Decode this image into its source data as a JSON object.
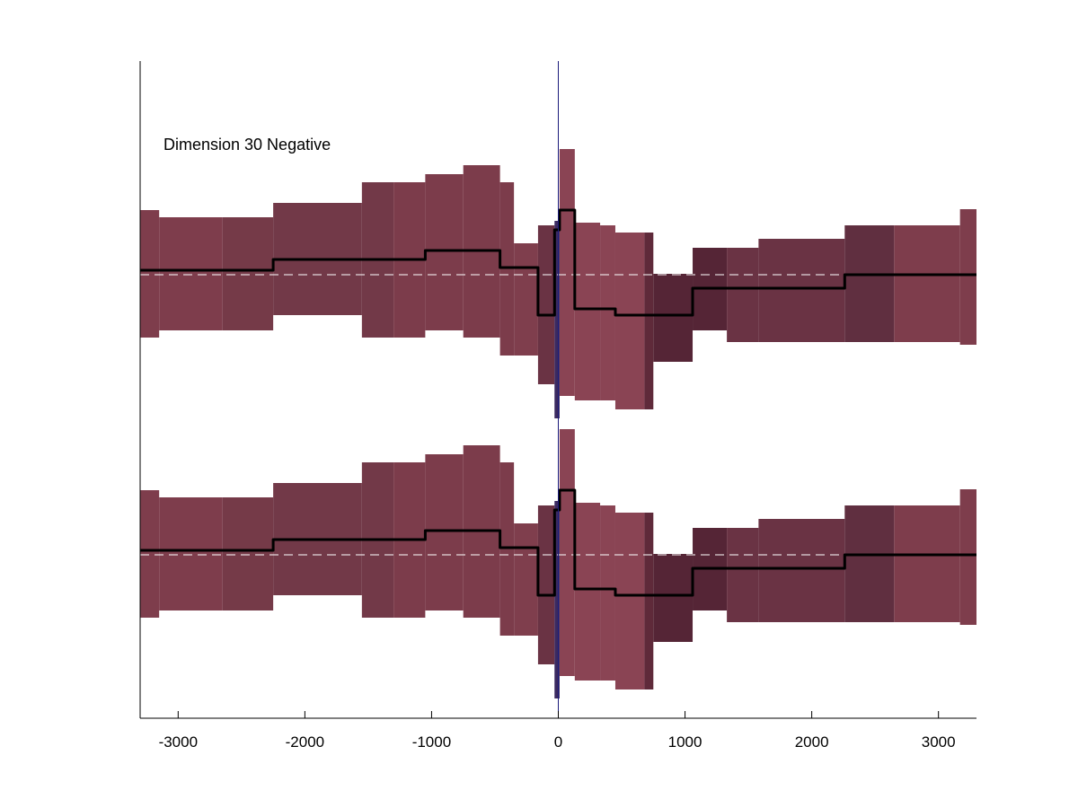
{
  "chart_data": {
    "type": "area",
    "title": "",
    "annotation": "Dimension 30 Negative",
    "xlabel": "",
    "ylabel": "",
    "xlim": [
      -3300,
      3300
    ],
    "x_ticks": [
      -3000,
      -2000,
      -1000,
      0,
      1000,
      2000,
      3000
    ],
    "x_tick_labels": [
      "-3000",
      "-2000",
      "-1000",
      "0",
      "1000",
      "2000",
      "3000"
    ],
    "grid": false,
    "legend": "none",
    "panels": [
      {
        "name": "",
        "reference_line": "dashed",
        "bins": [
          {
            "x0": -3300,
            "x1": -3150,
            "lower": -0.7,
            "upper": 0.72,
            "mean": 0.05,
            "color": "#7e3d4c"
          },
          {
            "x0": -3150,
            "x1": -2650,
            "lower": -0.62,
            "upper": 0.64,
            "mean": 0.05,
            "color": "#7e3d4c"
          },
          {
            "x0": -2650,
            "x1": -2250,
            "lower": -0.62,
            "upper": 0.64,
            "mean": 0.05,
            "color": "#753a48"
          },
          {
            "x0": -2250,
            "x1": -1550,
            "lower": -0.45,
            "upper": 0.8,
            "mean": 0.17,
            "color": "#723948"
          },
          {
            "x0": -1550,
            "x1": -1300,
            "lower": -0.7,
            "upper": 1.03,
            "mean": 0.17,
            "color": "#723948"
          },
          {
            "x0": -1300,
            "x1": -1050,
            "lower": -0.7,
            "upper": 1.03,
            "mean": 0.17,
            "color": "#7c3c4b"
          },
          {
            "x0": -1050,
            "x1": -750,
            "lower": -0.62,
            "upper": 1.12,
            "mean": 0.27,
            "color": "#7c3c4b"
          },
          {
            "x0": -750,
            "x1": -460,
            "lower": -0.7,
            "upper": 1.22,
            "mean": 0.27,
            "color": "#7c3c4b"
          },
          {
            "x0": -460,
            "x1": -350,
            "lower": -0.9,
            "upper": 1.03,
            "mean": 0.08,
            "color": "#7c3c4b"
          },
          {
            "x0": -350,
            "x1": -160,
            "lower": -0.9,
            "upper": 0.35,
            "mean": 0.08,
            "color": "#7f3e4d"
          },
          {
            "x0": -160,
            "x1": -30,
            "lower": -1.22,
            "upper": 0.55,
            "mean": -0.45,
            "color": "#6a3344"
          },
          {
            "x0": -30,
            "x1": 10,
            "lower": -1.6,
            "upper": 0.6,
            "mean": 0.5,
            "color": "#3b2a60"
          },
          {
            "x0": 10,
            "x1": 130,
            "lower": -1.35,
            "upper": 1.4,
            "mean": 0.72,
            "color": "#8a4454"
          },
          {
            "x0": 130,
            "x1": 330,
            "lower": -1.4,
            "upper": 0.58,
            "mean": -0.38,
            "color": "#8a4454"
          },
          {
            "x0": 330,
            "x1": 450,
            "lower": -1.4,
            "upper": 0.55,
            "mean": -0.38,
            "color": "#8a4454"
          },
          {
            "x0": 450,
            "x1": 680,
            "lower": -1.5,
            "upper": 0.47,
            "mean": -0.45,
            "color": "#8a4454"
          },
          {
            "x0": 680,
            "x1": 750,
            "lower": -1.5,
            "upper": 0.47,
            "mean": -0.45,
            "color": "#5f2a3a"
          },
          {
            "x0": 750,
            "x1": 1060,
            "lower": -0.97,
            "upper": 0.01,
            "mean": -0.45,
            "color": "#552536"
          },
          {
            "x0": 1060,
            "x1": 1330,
            "lower": -0.62,
            "upper": 0.3,
            "mean": -0.15,
            "color": "#552536"
          },
          {
            "x0": 1330,
            "x1": 1580,
            "lower": -0.75,
            "upper": 0.3,
            "mean": -0.15,
            "color": "#6a3344"
          },
          {
            "x0": 1580,
            "x1": 2260,
            "lower": -0.75,
            "upper": 0.4,
            "mean": -0.15,
            "color": "#6a3344"
          },
          {
            "x0": 2260,
            "x1": 2650,
            "lower": -0.75,
            "upper": 0.55,
            "mean": 0.0,
            "color": "#602f40"
          },
          {
            "x0": 2650,
            "x1": 3170,
            "lower": -0.75,
            "upper": 0.55,
            "mean": 0.0,
            "color": "#7e3d4c"
          },
          {
            "x0": 3170,
            "x1": 3300,
            "lower": -0.78,
            "upper": 0.73,
            "mean": 0.0,
            "color": "#7e3d4c"
          }
        ]
      },
      {
        "name": "",
        "reference_line": "dashed",
        "bins": [
          {
            "x0": -3300,
            "x1": -3150,
            "lower": -0.7,
            "upper": 0.72,
            "mean": 0.05,
            "color": "#7e3d4c"
          },
          {
            "x0": -3150,
            "x1": -2650,
            "lower": -0.62,
            "upper": 0.64,
            "mean": 0.05,
            "color": "#7e3d4c"
          },
          {
            "x0": -2650,
            "x1": -2250,
            "lower": -0.62,
            "upper": 0.64,
            "mean": 0.05,
            "color": "#753a48"
          },
          {
            "x0": -2250,
            "x1": -1550,
            "lower": -0.45,
            "upper": 0.8,
            "mean": 0.17,
            "color": "#723948"
          },
          {
            "x0": -1550,
            "x1": -1300,
            "lower": -0.7,
            "upper": 1.03,
            "mean": 0.17,
            "color": "#723948"
          },
          {
            "x0": -1300,
            "x1": -1050,
            "lower": -0.7,
            "upper": 1.03,
            "mean": 0.17,
            "color": "#7c3c4b"
          },
          {
            "x0": -1050,
            "x1": -750,
            "lower": -0.62,
            "upper": 1.12,
            "mean": 0.27,
            "color": "#7c3c4b"
          },
          {
            "x0": -750,
            "x1": -460,
            "lower": -0.7,
            "upper": 1.22,
            "mean": 0.27,
            "color": "#7c3c4b"
          },
          {
            "x0": -460,
            "x1": -350,
            "lower": -0.9,
            "upper": 1.03,
            "mean": 0.08,
            "color": "#7c3c4b"
          },
          {
            "x0": -350,
            "x1": -160,
            "lower": -0.9,
            "upper": 0.35,
            "mean": 0.08,
            "color": "#7f3e4d"
          },
          {
            "x0": -160,
            "x1": -30,
            "lower": -1.22,
            "upper": 0.55,
            "mean": -0.45,
            "color": "#6a3344"
          },
          {
            "x0": -30,
            "x1": 10,
            "lower": -1.6,
            "upper": 0.6,
            "mean": 0.5,
            "color": "#3b2a60"
          },
          {
            "x0": 10,
            "x1": 130,
            "lower": -1.35,
            "upper": 1.4,
            "mean": 0.72,
            "color": "#8a4454"
          },
          {
            "x0": 130,
            "x1": 330,
            "lower": -1.4,
            "upper": 0.58,
            "mean": -0.38,
            "color": "#8a4454"
          },
          {
            "x0": 330,
            "x1": 450,
            "lower": -1.4,
            "upper": 0.55,
            "mean": -0.38,
            "color": "#8a4454"
          },
          {
            "x0": 450,
            "x1": 680,
            "lower": -1.5,
            "upper": 0.47,
            "mean": -0.45,
            "color": "#8a4454"
          },
          {
            "x0": 680,
            "x1": 750,
            "lower": -1.5,
            "upper": 0.47,
            "mean": -0.45,
            "color": "#5f2a3a"
          },
          {
            "x0": 750,
            "x1": 1060,
            "lower": -0.97,
            "upper": 0.01,
            "mean": -0.45,
            "color": "#552536"
          },
          {
            "x0": 1060,
            "x1": 1330,
            "lower": -0.62,
            "upper": 0.3,
            "mean": -0.15,
            "color": "#552536"
          },
          {
            "x0": 1330,
            "x1": 1580,
            "lower": -0.75,
            "upper": 0.3,
            "mean": -0.15,
            "color": "#6a3344"
          },
          {
            "x0": 1580,
            "x1": 2260,
            "lower": -0.75,
            "upper": 0.4,
            "mean": -0.15,
            "color": "#6a3344"
          },
          {
            "x0": 2260,
            "x1": 2650,
            "lower": -0.75,
            "upper": 0.55,
            "mean": 0.0,
            "color": "#602f40"
          },
          {
            "x0": 2650,
            "x1": 3170,
            "lower": -0.75,
            "upper": 0.55,
            "mean": 0.0,
            "color": "#7e3d4c"
          },
          {
            "x0": 3170,
            "x1": 3300,
            "lower": -0.78,
            "upper": 0.73,
            "mean": 0.0,
            "color": "#7e3d4c"
          }
        ]
      }
    ],
    "colors": {
      "mean_line": "#000000",
      "reference_line": "#ffffff",
      "zero_line": "#1a1a7a",
      "axis": "#000000"
    }
  }
}
